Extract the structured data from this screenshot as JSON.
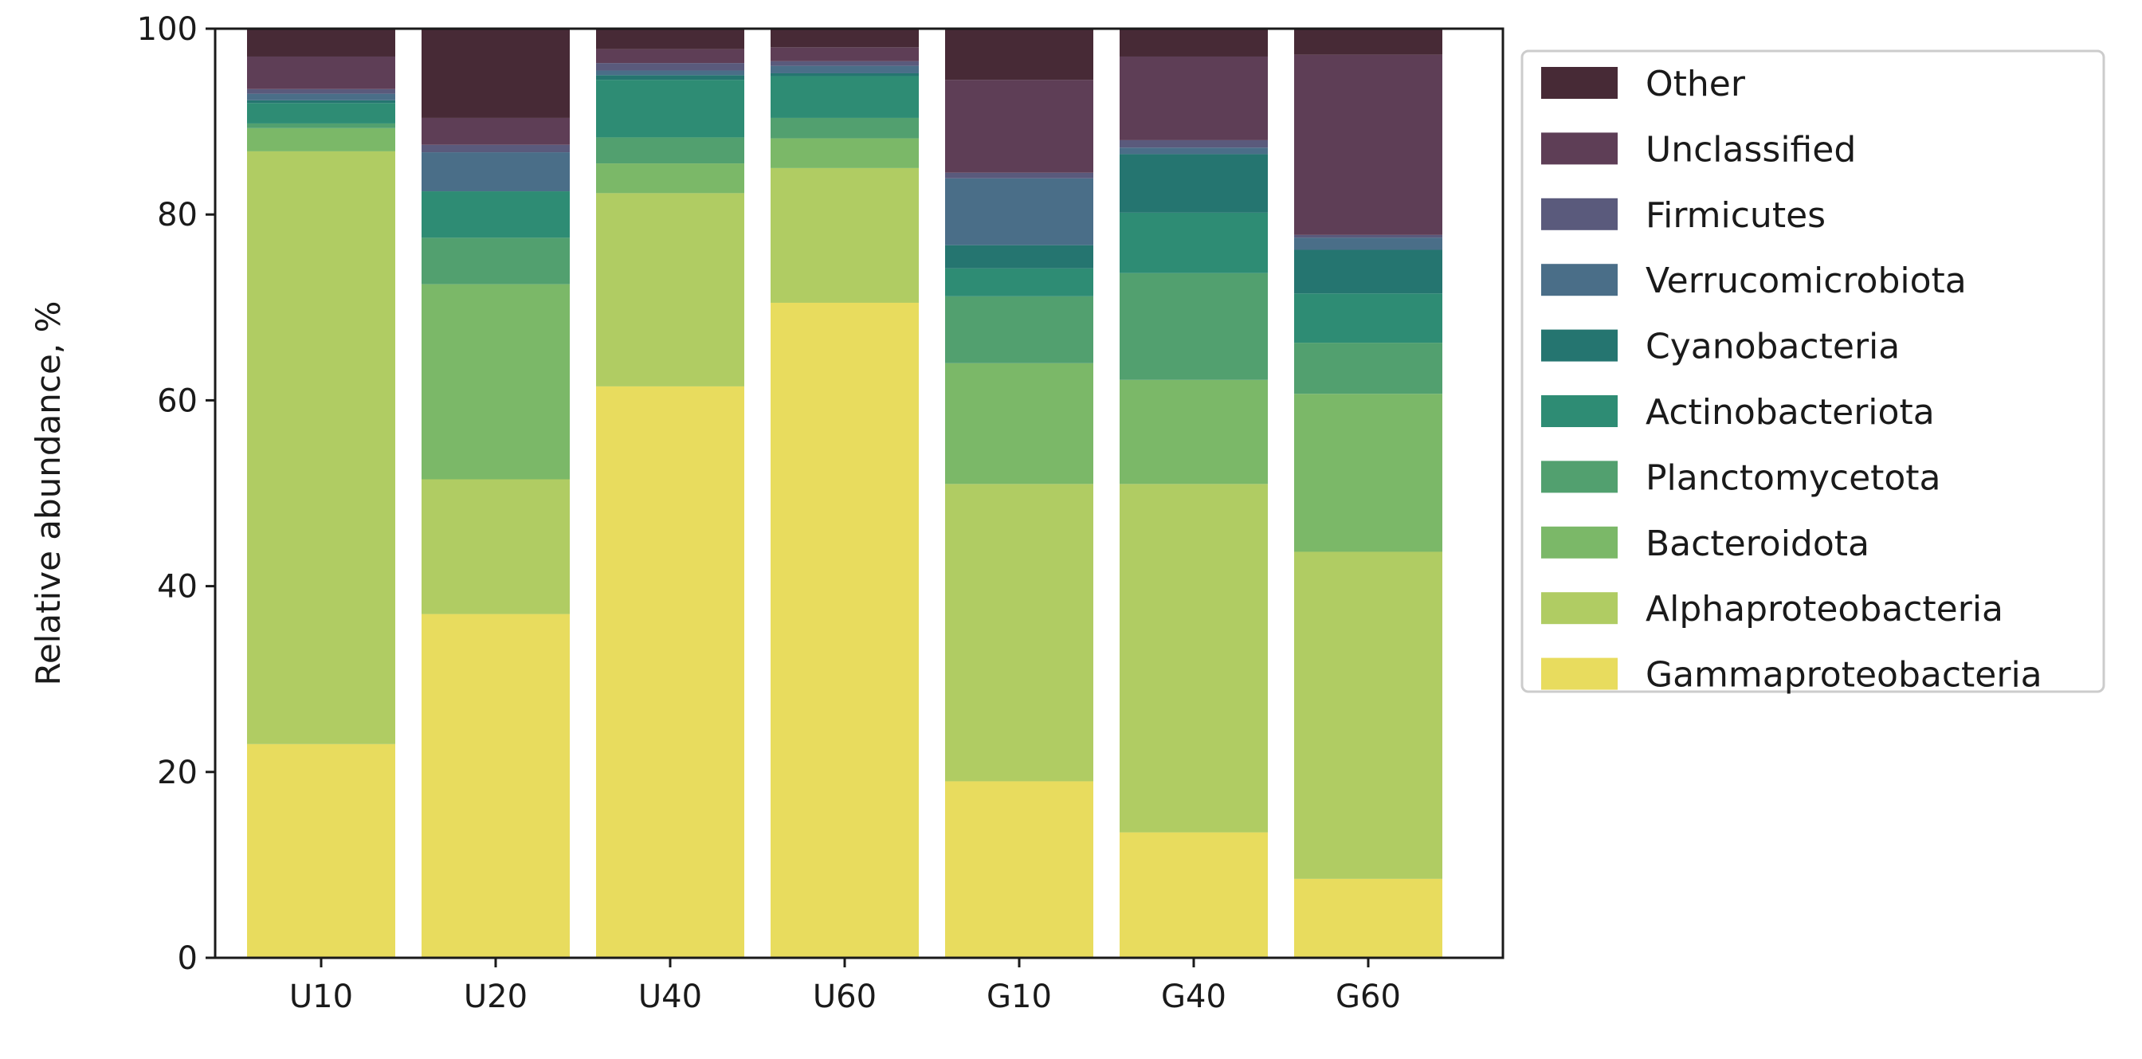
{
  "chart_data": {
    "type": "bar",
    "stacked": true,
    "title": "",
    "xlabel": "",
    "ylabel": "Relative abundance, %",
    "ylim": [
      0,
      100
    ],
    "yticks": [
      0,
      20,
      40,
      60,
      80,
      100
    ],
    "grid": false,
    "legend_position": "outside-right-top",
    "categories": [
      "U10",
      "U20",
      "U40",
      "U60",
      "G10",
      "G40",
      "G60"
    ],
    "series": [
      {
        "name": "Gammaproteobacteria",
        "color": "#e8dc5e",
        "values": [
          23.0,
          37.0,
          61.5,
          70.5,
          19.0,
          13.5,
          8.5
        ]
      },
      {
        "name": "Alphaproteobacteria",
        "color": "#b0cc63",
        "values": [
          63.8,
          14.5,
          20.8,
          14.5,
          32.0,
          37.5,
          35.2
        ]
      },
      {
        "name": "Bacteroidota",
        "color": "#7bb868",
        "values": [
          2.5,
          21.0,
          3.2,
          3.2,
          13.0,
          11.2,
          17.0
        ]
      },
      {
        "name": "Planctomycetota",
        "color": "#52a06f",
        "values": [
          0.5,
          5.0,
          2.8,
          2.2,
          7.2,
          11.5,
          5.5
        ]
      },
      {
        "name": "Actinobacteriota",
        "color": "#2e8c74",
        "values": [
          2.2,
          5.0,
          6.2,
          4.5,
          3.0,
          6.5,
          5.3
        ]
      },
      {
        "name": "Cyanobacteria",
        "color": "#257570",
        "values": [
          0.3,
          0.0,
          0.5,
          0.3,
          2.5,
          6.3,
          4.7
        ]
      },
      {
        "name": "Verrucomicrobiota",
        "color": "#4a6e88",
        "values": [
          0.7,
          4.2,
          0.5,
          0.8,
          7.2,
          0.7,
          1.3
        ]
      },
      {
        "name": "Firmicutes",
        "color": "#5a5a7c",
        "values": [
          0.5,
          0.8,
          0.8,
          0.5,
          0.6,
          0.8,
          0.3
        ]
      },
      {
        "name": "Unclassified",
        "color": "#5e3e56",
        "values": [
          3.5,
          2.9,
          1.5,
          1.5,
          10.0,
          9.0,
          19.4
        ]
      },
      {
        "name": "Other",
        "color": "#472a36",
        "values": [
          3.0,
          9.6,
          2.2,
          2.0,
          5.5,
          3.0,
          2.8
        ]
      }
    ]
  }
}
